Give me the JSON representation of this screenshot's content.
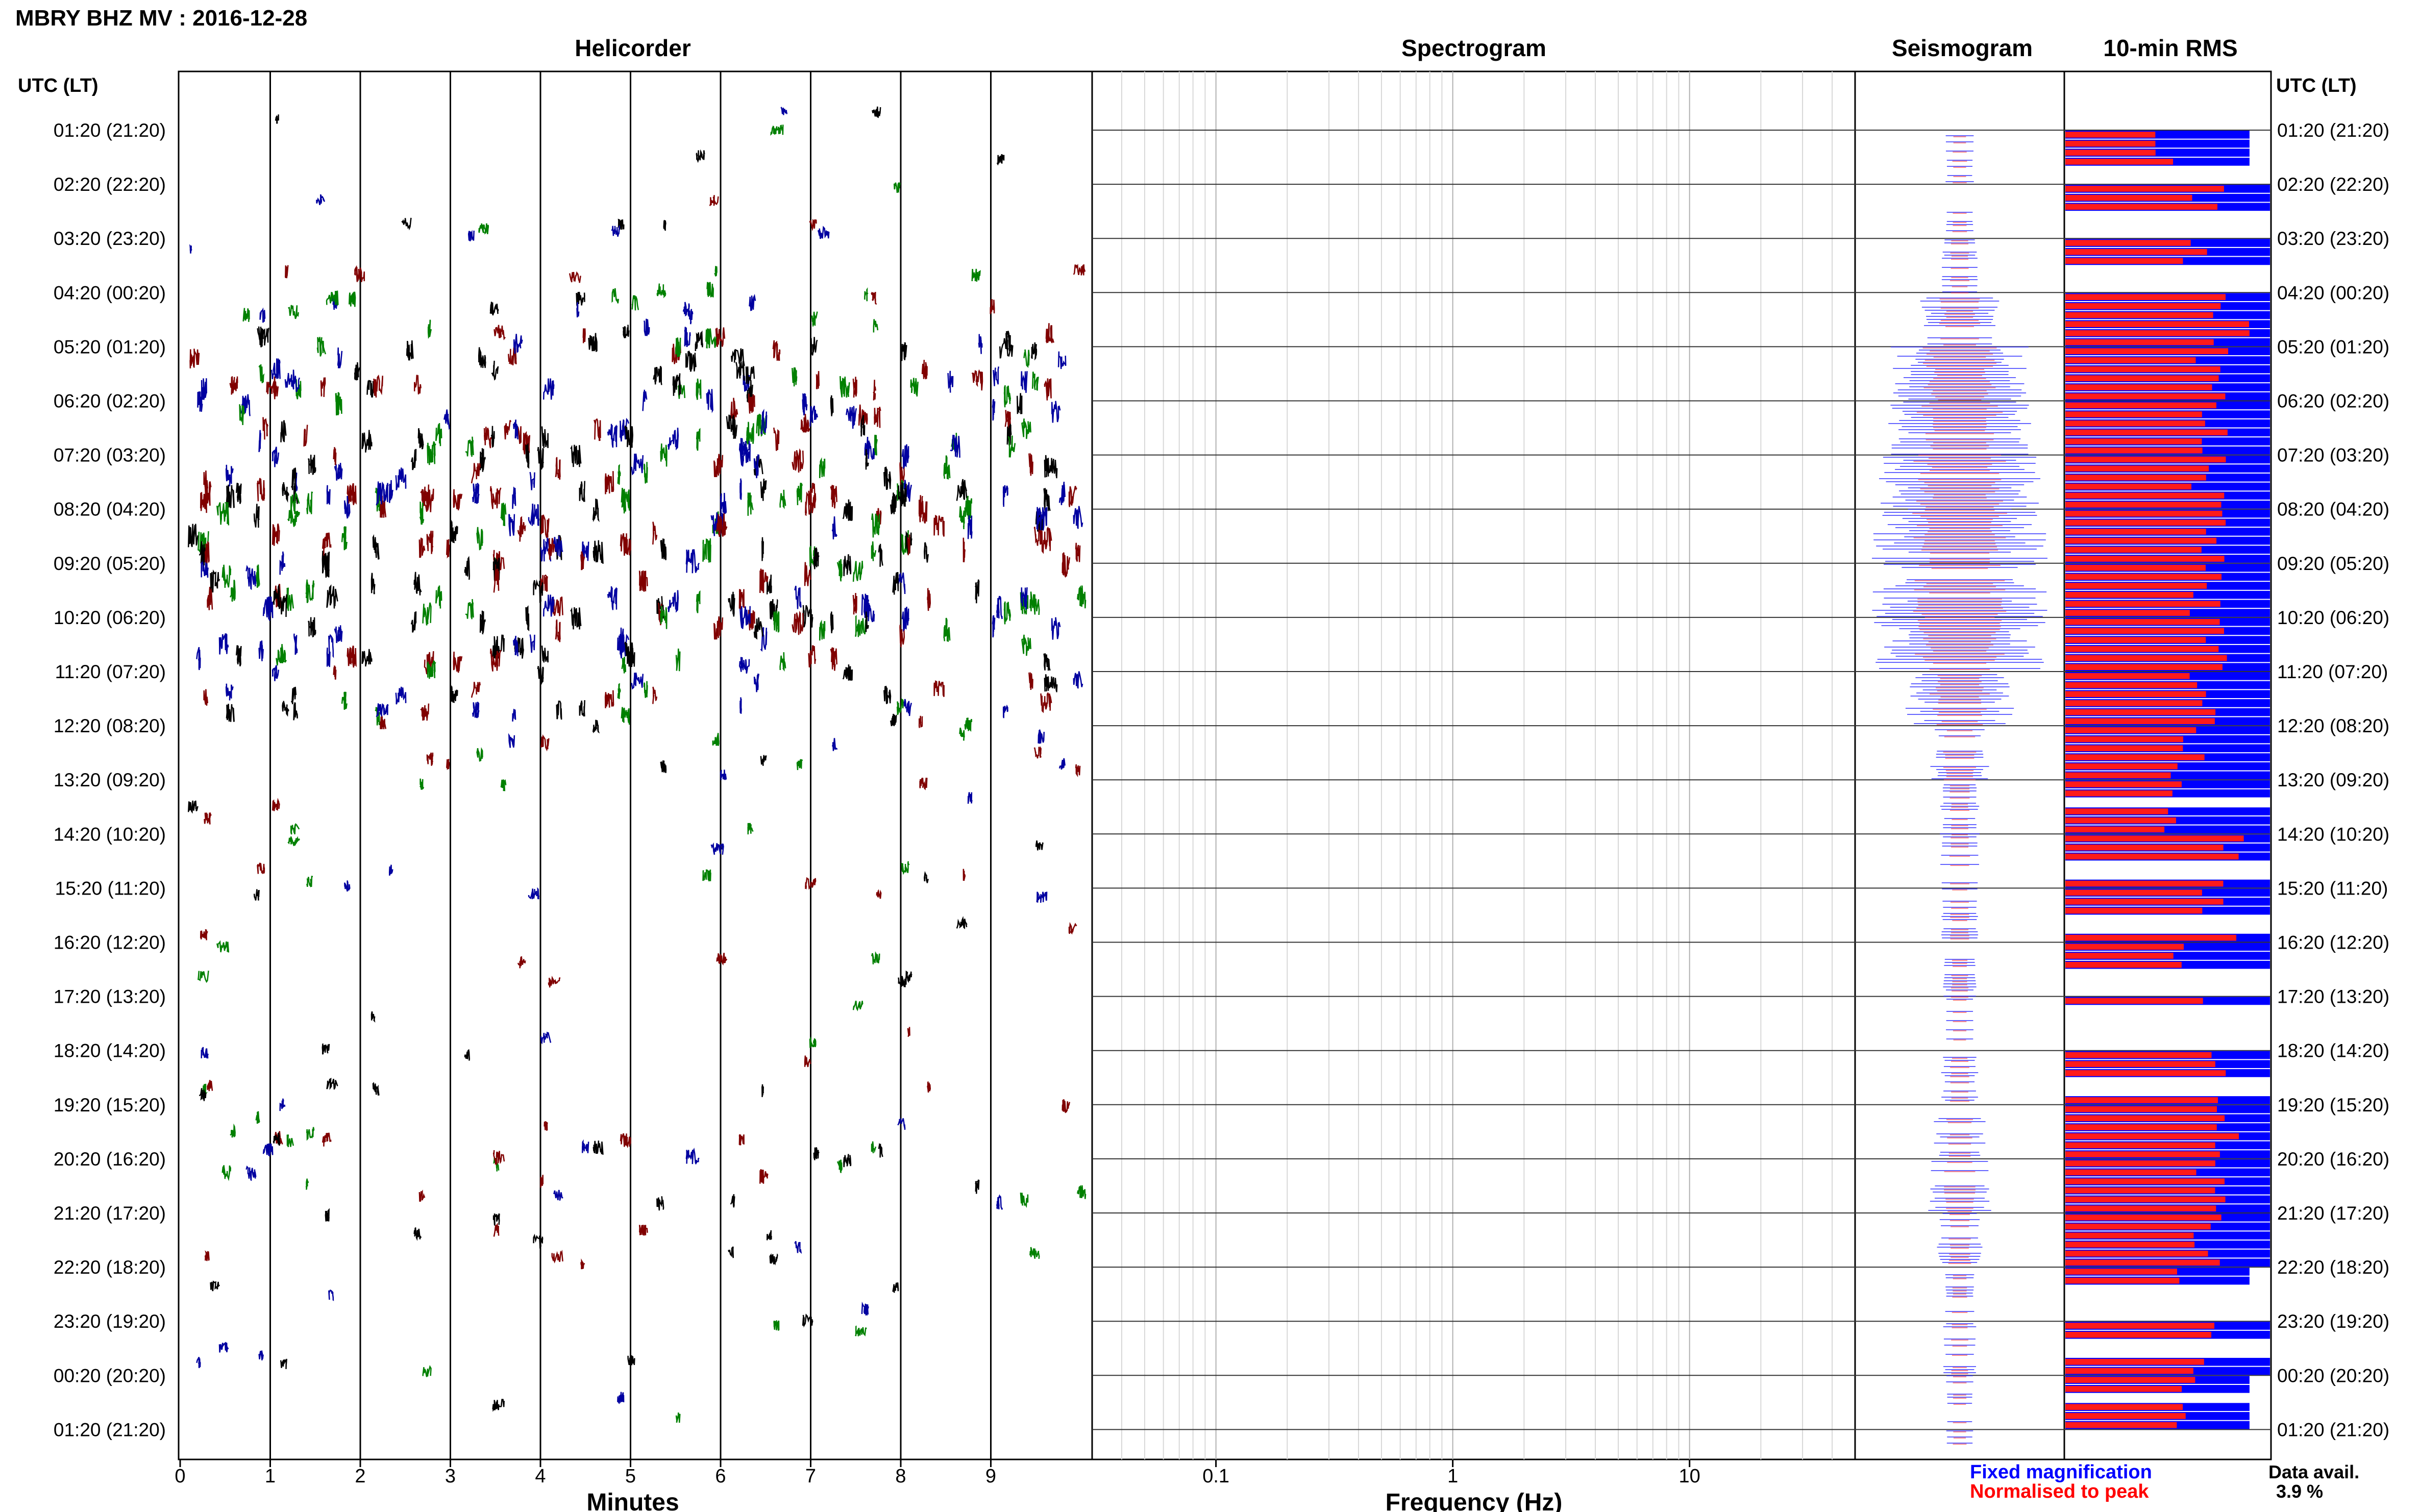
{
  "title": "MBRY BHZ MV : 2016-12-28",
  "panels": {
    "helicorder": "Helicorder",
    "spectrogram": "Spectrogram",
    "seismogram": "Seismogram",
    "rms": "10-min RMS"
  },
  "utc_label": "UTC (LT)",
  "time_labels": [
    "01:20 (21:20)",
    "02:20 (22:20)",
    "03:20 (23:20)",
    "04:20 (00:20)",
    "05:20 (01:20)",
    "06:20 (02:20)",
    "07:20 (03:20)",
    "08:20 (04:20)",
    "09:20 (05:20)",
    "10:20 (06:20)",
    "11:20 (07:20)",
    "12:20 (08:20)",
    "13:20 (09:20)",
    "14:20 (10:20)",
    "15:20 (11:20)",
    "16:20 (12:20)",
    "17:20 (13:20)",
    "18:20 (14:20)",
    "19:20 (15:20)",
    "20:20 (16:20)",
    "21:20 (17:20)",
    "22:20 (18:20)",
    "23:20 (19:20)",
    "00:20 (20:20)",
    "01:20 (21:20)"
  ],
  "x_axes": {
    "minutes_label": "Minutes",
    "minutes_ticks": [
      "0",
      "1",
      "2",
      "3",
      "4",
      "5",
      "6",
      "7",
      "8",
      "9"
    ],
    "frequency_label": "Frequency (Hz)",
    "frequency_ticks": [
      "0.1",
      "1",
      "10"
    ]
  },
  "legend": {
    "fixed": "Fixed magnification",
    "normalised": "Normalised to peak",
    "fixed_color": "#0000ff",
    "normalised_color": "#ff0000"
  },
  "data_avail": {
    "label": "Data avail.",
    "value": "3.9 %"
  },
  "colors": {
    "trace_cycle": [
      "#000000",
      "#0000a0",
      "#008000",
      "#800000"
    ],
    "grid": "#000000",
    "rms_fixed": "#0000ff",
    "rms_normalised": "#ff1a1a"
  },
  "chart_data": {
    "type": "helicorder",
    "rows_hours": 24,
    "minutes_range": [
      0,
      10
    ],
    "frequency_range_hz": [
      0.03,
      50
    ],
    "frequency_scale": "log",
    "rms": {
      "fixed_fraction_per_hour": [
        0.9,
        1.0,
        1.0,
        1.0,
        1.0,
        1.0,
        1.0,
        1.0,
        1.0,
        1.0,
        1.0,
        1.0,
        1.0,
        1.0,
        1.0,
        1.0,
        1.0,
        1.0,
        1.0,
        1.0,
        1.0,
        0.9,
        1.0,
        0.9
      ],
      "normalised_fraction_per_hour": [
        0.48,
        0.68,
        0.63,
        0.8,
        0.72,
        0.7,
        0.72,
        0.75,
        0.7,
        0.7,
        0.7,
        0.6,
        0.5,
        0.8,
        0.75,
        0.6,
        0.67,
        0.7,
        0.75,
        0.75,
        0.7,
        0.6,
        0.68,
        0.58
      ]
    }
  }
}
